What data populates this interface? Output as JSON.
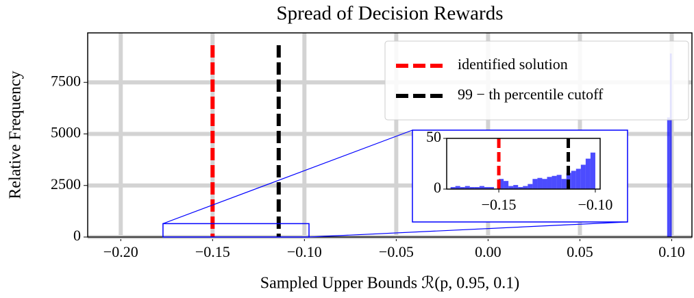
{
  "chart_data": {
    "type": "histogram",
    "title": "Spread of Decision Rewards",
    "xlabel": "Sampled Upper Bounds ℛ(p, 0.95, 0.1)",
    "ylabel": "Relative Frequency",
    "xlim": [
      -0.218,
      0.111
    ],
    "ylim": [
      0,
      9900
    ],
    "xticks": [
      {
        "value": -0.2,
        "label": "−0.20"
      },
      {
        "value": -0.15,
        "label": "−0.15"
      },
      {
        "value": -0.1,
        "label": "−0.10"
      },
      {
        "value": -0.05,
        "label": "−0.05"
      },
      {
        "value": 0,
        "label": "0.00"
      },
      0.05,
      {
        "value": 0.1,
        "label": "0.10"
      }
    ],
    "yticks": [
      0,
      2500,
      5000,
      7500
    ],
    "grid": true,
    "color": "#0000ff",
    "bins": [
      0.0975,
      0.099,
      0.1
    ],
    "counts": [
      5800,
      8900
    ],
    "vlines": [
      {
        "name": "identified solution",
        "color": "#ff0000",
        "x": -0.15,
        "ymax": 9300
      },
      {
        "name": "99 − th percentile cutoff",
        "color": "#000000",
        "x": -0.114,
        "ymax": 9300
      }
    ],
    "legend": "upper right",
    "inset": {
      "xlim": [
        -0.177,
        -0.0975
      ],
      "ylim": [
        0,
        50
      ],
      "xticks": [
        {
          "value": -0.15,
          "label": "−0.15"
        },
        {
          "value": -0.1,
          "label": "−0.10"
        }
      ],
      "yticks": [
        0,
        50
      ],
      "zoom_ylim": [
        0,
        650
      ],
      "bins": [
        -0.175,
        -0.1725,
        -0.17,
        -0.1675,
        -0.165,
        -0.1625,
        -0.16,
        -0.1575,
        -0.155,
        -0.1525,
        -0.15,
        -0.1475,
        -0.145,
        -0.1425,
        -0.14,
        -0.1375,
        -0.135,
        -0.1325,
        -0.13,
        -0.1275,
        -0.125,
        -0.1225,
        -0.12,
        -0.1175,
        -0.115,
        -0.1125,
        -0.11,
        -0.1075,
        -0.105,
        -0.1025,
        -0.1
      ],
      "counts": [
        2,
        3,
        2,
        3,
        2,
        2,
        3,
        2,
        2,
        0,
        10,
        8,
        3,
        4,
        2,
        3,
        5,
        10,
        11,
        10,
        12,
        13,
        14,
        10,
        16,
        18,
        20,
        24,
        30,
        36
      ]
    }
  }
}
